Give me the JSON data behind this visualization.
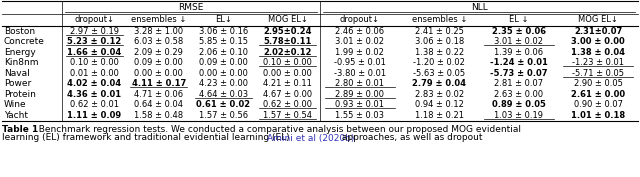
{
  "title_rmse": "RMSE",
  "title_nll": "NLL",
  "col_headers": [
    "dropout↓",
    "ensembles ↓",
    "EL↓",
    "MOG EL↓",
    "dropout↓",
    "ensembles ↓",
    "EL ↓",
    "MOG EL↓"
  ],
  "row_labels": [
    "Boston",
    "Concrete",
    "Energy",
    "Kin8nm",
    "Naval",
    "Power",
    "Protein",
    "Wine",
    "Yacht"
  ],
  "data": [
    [
      "2.97 ± 0.19",
      "3.28 ± 1.00",
      "3.06 ± 0.16",
      "2.95±0.24",
      "2.46 ± 0.06",
      "2.41 ± 0.25",
      "2.35 ± 0.06",
      "2.31±0.07"
    ],
    [
      "5.23 ± 0.12",
      "6.03 ± 0.58",
      "5.85 ± 0.15",
      "5.78±0.11",
      "3.01 ± 0.02",
      "3.06 ± 0.18",
      "3.01 ± 0.02",
      "3.00 ± 0.00"
    ],
    [
      "1.66 ± 0.04",
      "2.09 ± 0.29",
      "2.06 ± 0.10",
      "2.02±0.12",
      "1.99 ± 0.02",
      "1.38 ± 0.22",
      "1.39 ± 0.06",
      "1.38 ± 0.04"
    ],
    [
      "0.10 ± 0.00",
      "0.09 ± 0.00",
      "0.09 ± 0.00",
      "0.10 ± 0.00",
      "-0.95 ± 0.01",
      "-1.20 ± 0.02",
      "-1.24 ± 0.01",
      "-1.23 ± 0.01"
    ],
    [
      "0.01 ± 0.00",
      "0.00 ± 0.00",
      "0.00 ± 0.00",
      "0.00 ± 0.00",
      "-3.80 ± 0.01",
      "-5.63 ± 0.05",
      "-5.73 ± 0.07",
      "-5.71 ± 0.05"
    ],
    [
      "4.02 ± 0.04",
      "4.11 ± 0.17",
      "4.23 ± 0.00",
      "4.21 ± 0.11",
      "2.80 ± 0.01",
      "2.79 ± 0.04",
      "2.81 ± 0.07",
      "2.90 ± 0.05"
    ],
    [
      "4.36 ± 0.01",
      "4.71 ± 0.06",
      "4.64 ± 0.03",
      "4.67 ± 0.00",
      "2.89 ± 0.00",
      "2.83 ± 0.02",
      "2.63 ± 0.00",
      "2.61 ± 0.00"
    ],
    [
      "0.62 ± 0.01",
      "0.64 ± 0.04",
      "0.61 ± 0.02",
      "0.62 ± 0.00",
      "0.93 ± 0.01",
      "0.94 ± 0.12",
      "0.89 ± 0.05",
      "0.90 ± 0.07"
    ],
    [
      "1.11 ± 0.09",
      "1.58 ± 0.48",
      "1.57 ± 0.56",
      "1.57 ± 0.54",
      "1.55 ± 0.03",
      "1.18 ± 0.21",
      "1.03 ± 0.19",
      "1.01 ± 0.18"
    ]
  ],
  "bold": [
    [
      false,
      false,
      false,
      true,
      false,
      false,
      true,
      true
    ],
    [
      true,
      false,
      false,
      true,
      false,
      false,
      false,
      true
    ],
    [
      true,
      false,
      false,
      true,
      false,
      false,
      false,
      true
    ],
    [
      false,
      false,
      false,
      false,
      false,
      false,
      true,
      false
    ],
    [
      false,
      false,
      false,
      false,
      false,
      false,
      true,
      false
    ],
    [
      true,
      true,
      false,
      false,
      false,
      true,
      false,
      false
    ],
    [
      true,
      false,
      false,
      false,
      false,
      false,
      false,
      true
    ],
    [
      false,
      false,
      true,
      false,
      false,
      false,
      true,
      false
    ],
    [
      true,
      false,
      false,
      false,
      false,
      false,
      false,
      true
    ]
  ],
  "underline": [
    [
      true,
      false,
      false,
      false,
      false,
      false,
      false,
      false
    ],
    [
      true,
      false,
      false,
      true,
      false,
      false,
      true,
      false
    ],
    [
      true,
      false,
      false,
      true,
      false,
      false,
      false,
      false
    ],
    [
      false,
      false,
      false,
      true,
      false,
      false,
      false,
      true
    ],
    [
      false,
      false,
      false,
      false,
      false,
      false,
      false,
      true
    ],
    [
      false,
      true,
      false,
      false,
      true,
      false,
      false,
      false
    ],
    [
      false,
      false,
      true,
      false,
      true,
      false,
      false,
      false
    ],
    [
      false,
      false,
      false,
      true,
      true,
      false,
      false,
      false
    ],
    [
      false,
      false,
      false,
      true,
      false,
      false,
      true,
      false
    ]
  ],
  "caption_bold": "Table 1",
  "caption_rest": "  Benchmark regression tests. We conducted a comparative analysis between our proposed MOG evidential\nlearning (EL) framework and traditional evidential learning (EL) ",
  "caption_link": "Amini et al (2020b)",
  "caption_end": " approaches, as well as dropout",
  "bg_color": "#ffffff",
  "font_size": 6.5,
  "caption_font_size": 6.5,
  "link_color": "#3333bb"
}
